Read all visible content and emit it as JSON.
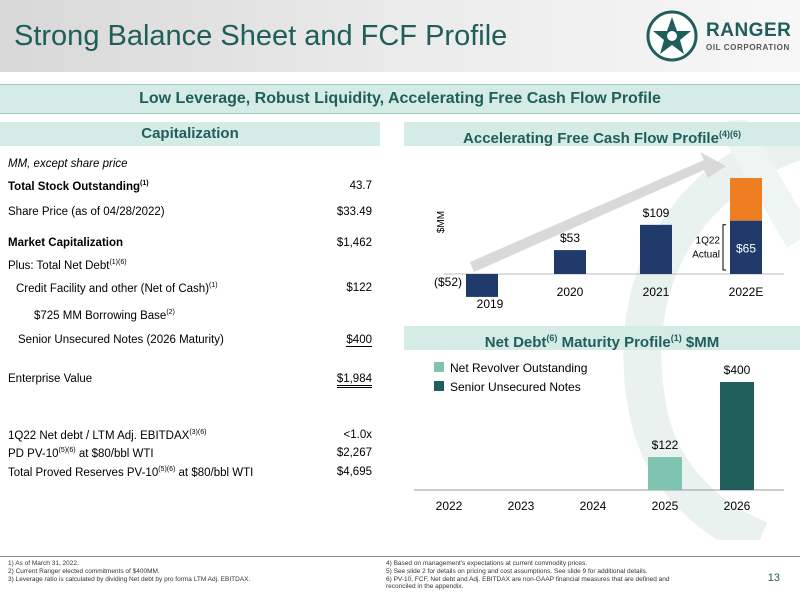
{
  "header": {
    "title": "Strong Balance Sheet and FCF Profile",
    "logo": {
      "name": "RANGER",
      "subtitle": "OIL CORPORATION"
    }
  },
  "banner": "Low Leverage, Robust Liquidity, Accelerating Free Cash Flow Profile",
  "capitalization": {
    "heading": "Capitalization",
    "subheading": "MM, except share price",
    "rows": [
      {
        "label": "Total Stock Outstanding",
        "sup": "(1)",
        "value": "43.7"
      },
      {
        "label": "Share Price (as of 04/28/2022)",
        "sup": "",
        "value": "$33.49"
      },
      {
        "label": "Market Capitalization",
        "sup": "",
        "value": "$1,462"
      },
      {
        "label": "Plus: Total Net Debt",
        "sup": "(1)(6)",
        "value": ""
      },
      {
        "label": "Credit Facility and other (Net of Cash)",
        "sup": "(1)",
        "value": "$122"
      },
      {
        "label": "$725 MM Borrowing Base",
        "sup": "(2)",
        "value": ""
      },
      {
        "label": "Senior Unsecured Notes (2026 Maturity)",
        "sup": "",
        "value": "$400"
      },
      {
        "label": "Enterprise Value",
        "sup": "",
        "value": "$1,984"
      },
      {
        "label": "1Q22 Net debt / LTM Adj. EBITDAX",
        "sup": "(3)(6)",
        "value": "<1.0x"
      },
      {
        "label": "PD PV-10",
        "sup": "(5)(6)",
        "suffix": " at $80/bbl WTI",
        "value": "$2,267"
      },
      {
        "label": "Total Proved Reserves PV-10",
        "sup": "(5)(6)",
        "suffix": " at $80/bbl WTI",
        "value": "$4,695"
      }
    ]
  },
  "fcf_heading": {
    "text": "Accelerating Free Cash Flow Profile",
    "sup": "(4)(6)"
  },
  "debt_heading": {
    "text": "Net Debt",
    "sup1": "(6)",
    "mid": " Maturity Profile",
    "sup2": "(1)",
    "tail": " $MM"
  },
  "chart_data": [
    {
      "type": "bar",
      "title": "Accelerating Free Cash Flow Profile",
      "ylabel": "$MM",
      "categories": [
        "2019",
        "2020",
        "2021",
        "2022E"
      ],
      "values": [
        -52,
        53,
        109,
        65
      ],
      "value_labels": [
        "($52)",
        "$53",
        "$109",
        "$65"
      ],
      "stacked_top_2022E": "forecast remainder (orange segment, unlabeled)",
      "annotation": "1Q22 Actual",
      "colors": {
        "bar": "#1f3a6b",
        "forecast": "#ef7d22"
      }
    },
    {
      "type": "bar",
      "title": "Net Debt Maturity Profile $MM",
      "categories": [
        "2022",
        "2023",
        "2024",
        "2025",
        "2026"
      ],
      "series": [
        {
          "name": "Net Revolver Outstanding",
          "values": [
            0,
            0,
            0,
            122,
            0
          ],
          "color": "#7fc4b1"
        },
        {
          "name": "Senior Unsecured Notes",
          "values": [
            0,
            0,
            0,
            0,
            400
          ],
          "color": "#1f5e5a"
        }
      ],
      "value_labels": {
        "2025": "$122",
        "2026": "$400"
      },
      "legend": "top-left"
    }
  ],
  "footnotes": [
    "1)    As of March 31, 2022.",
    "2)    Current Ranger elected commitments of $400MM.",
    "3)    Leverage ratio is calculated by dividing Net debt by pro forma LTM Adj. EBITDAX.",
    "4)    Based on management's expectations at current commodity prices.",
    "5)    See slide 2 for details on pricing and cost assumptions. See slide 9 for additional details.",
    "6)    PV-10, FCF, Net debt and Adj. EBITDAX are non-GAAP financial measures that are defined and",
    "       reconciled in the appendix."
  ],
  "page_number": "13"
}
